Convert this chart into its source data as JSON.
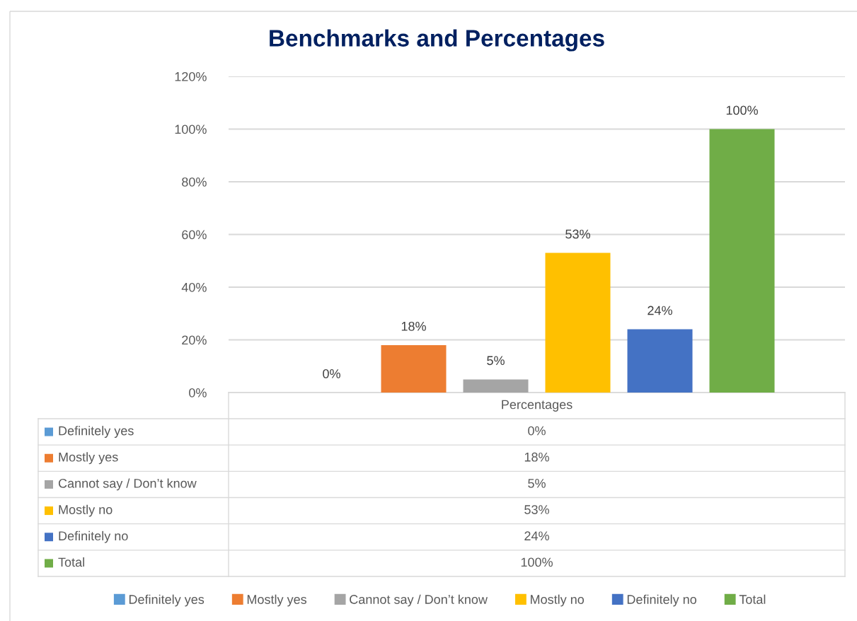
{
  "chart_data": {
    "type": "bar",
    "title": "Benchmarks and Percentages",
    "categories": [
      "Percentages"
    ],
    "series": [
      {
        "name": "Definitely yes",
        "color": "#5b9bd5",
        "values": [
          0
        ],
        "value_labels": [
          "0%"
        ]
      },
      {
        "name": "Mostly yes",
        "color": "#ed7d31",
        "values": [
          18
        ],
        "value_labels": [
          "18%"
        ]
      },
      {
        "name": "Cannot say / Don’t know",
        "color": "#a5a5a5",
        "values": [
          5
        ],
        "value_labels": [
          "5%"
        ]
      },
      {
        "name": "Mostly no",
        "color": "#ffc000",
        "values": [
          53
        ],
        "value_labels": [
          "53%"
        ]
      },
      {
        "name": "Definitely no",
        "color": "#4472c4",
        "values": [
          24
        ],
        "value_labels": [
          "24%"
        ]
      },
      {
        "name": "Total",
        "color": "#70ad47",
        "values": [
          100
        ],
        "value_labels": [
          "100%"
        ]
      }
    ],
    "ylim": [
      0,
      120
    ],
    "yticks": [
      {
        "value": 0,
        "label": "0%"
      },
      {
        "value": 20,
        "label": "20%"
      },
      {
        "value": 40,
        "label": "40%"
      },
      {
        "value": 60,
        "label": "60%"
      },
      {
        "value": 80,
        "label": "80%"
      },
      {
        "value": 100,
        "label": "100%"
      },
      {
        "value": 120,
        "label": "120%"
      }
    ],
    "grid": "y",
    "legend": "bottom"
  }
}
